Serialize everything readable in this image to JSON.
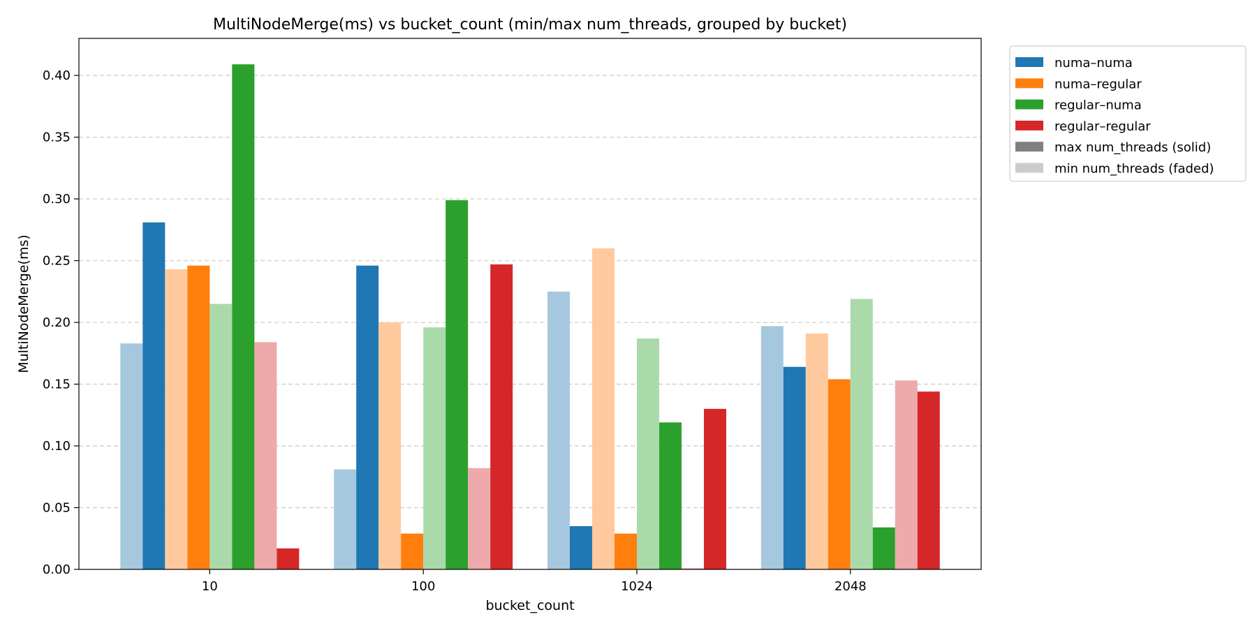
{
  "chart_data": {
    "type": "bar",
    "title": "MultiNodeMerge(ms) vs bucket_count (min/max num_threads, grouped by bucket)",
    "xlabel": "bucket_count",
    "ylabel": "MultiNodeMerge(ms)",
    "categories": [
      "10",
      "100",
      "1024",
      "2048"
    ],
    "ylim": [
      0,
      0.43
    ],
    "yticks": [
      "0.00",
      "0.05",
      "0.10",
      "0.15",
      "0.20",
      "0.25",
      "0.30",
      "0.35",
      "0.40"
    ],
    "grid": "y-dashed",
    "legend_position": "outside-top-right",
    "series": [
      {
        "name": "numa–numa",
        "variant": "min",
        "color": "#a6c8df",
        "values": [
          0.183,
          0.081,
          0.225,
          0.197
        ]
      },
      {
        "name": "numa–numa",
        "variant": "max",
        "color": "#1f77b4",
        "values": [
          0.281,
          0.246,
          0.035,
          0.164
        ]
      },
      {
        "name": "numa–regular",
        "variant": "min",
        "color": "#ffc99e",
        "values": [
          0.243,
          0.2,
          0.26,
          0.191
        ]
      },
      {
        "name": "numa–regular",
        "variant": "max",
        "color": "#ff7f0e",
        "values": [
          0.246,
          0.029,
          0.029,
          0.154
        ]
      },
      {
        "name": "regular–numa",
        "variant": "min",
        "color": "#aadaaa",
        "values": [
          0.215,
          0.196,
          0.187,
          0.219
        ]
      },
      {
        "name": "regular–numa",
        "variant": "max",
        "color": "#2ca02c",
        "values": [
          0.409,
          0.299,
          0.119,
          0.034
        ]
      },
      {
        "name": "regular–regular",
        "variant": "min",
        "color": "#eea9aa",
        "values": [
          0.184,
          0.082,
          0.001,
          0.153
        ]
      },
      {
        "name": "regular–regular",
        "variant": "max",
        "color": "#d62728",
        "values": [
          0.017,
          0.247,
          0.13,
          0.144
        ]
      }
    ],
    "legend": [
      {
        "label": "numa–numa",
        "color": "#1f77b4"
      },
      {
        "label": "numa–regular",
        "color": "#ff7f0e"
      },
      {
        "label": "regular–numa",
        "color": "#2ca02c"
      },
      {
        "label": "regular–regular",
        "color": "#d62728"
      },
      {
        "label": "max num_threads (solid)",
        "color": "#808080"
      },
      {
        "label": "min num_threads (faded)",
        "color": "#cccccc"
      }
    ]
  }
}
